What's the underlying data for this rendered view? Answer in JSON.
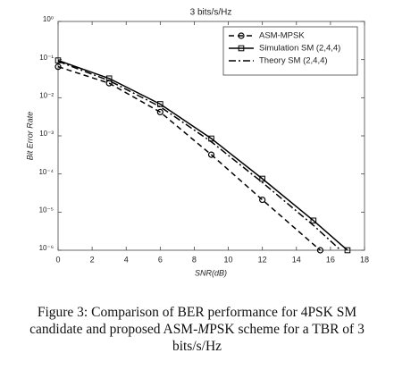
{
  "chart_data": {
    "type": "line",
    "title": "3 bits/s/Hz",
    "xlabel": "SNR(dB)",
    "ylabel": "Bit Error Rate",
    "xlim": [
      0,
      18
    ],
    "xticks": [
      0,
      2,
      4,
      6,
      8,
      10,
      12,
      14,
      16,
      18
    ],
    "ylim": [
      1e-06,
      1
    ],
    "yscale": "log",
    "yticks": [
      {
        "value": 1e-06,
        "label": "10⁻⁶"
      },
      {
        "value": 1e-05,
        "label": "10⁻⁵"
      },
      {
        "value": 0.0001,
        "label": "10⁻⁴"
      },
      {
        "value": 0.001,
        "label": "10⁻³"
      },
      {
        "value": 0.01,
        "label": "10⁻²"
      },
      {
        "value": 0.1,
        "label": "10⁻¹"
      },
      {
        "value": 1,
        "label": "10⁰"
      }
    ],
    "grid": false,
    "legend": "upper right",
    "series": [
      {
        "name": "ASM-MPSK",
        "color": "#000000",
        "linestyle": "dashed",
        "marker": "circle",
        "x": [
          0,
          3,
          6,
          9,
          12,
          15.4
        ],
        "values": [
          0.065,
          0.024,
          0.0042,
          0.00032,
          2.1e-05,
          1e-06
        ]
      },
      {
        "name": "Simulation SM (2,4,4)",
        "color": "#000000",
        "linestyle": "solid",
        "marker": "square",
        "x": [
          0,
          3,
          6,
          9,
          12,
          15,
          17
        ],
        "values": [
          0.095,
          0.032,
          0.0068,
          0.00085,
          7.5e-05,
          6e-06,
          1e-06
        ]
      },
      {
        "name": "Theory SM (2,4,4)",
        "color": "#000000",
        "linestyle": "dashdot",
        "marker": "none",
        "x": [
          0,
          3,
          6,
          9,
          12,
          15,
          16.6
        ],
        "values": [
          0.09,
          0.028,
          0.0058,
          0.0007,
          6e-05,
          4.5e-06,
          1e-06
        ]
      }
    ],
    "caption": [
      "Figure 3: Comparison of BER performance for 4PSK SM candidate and proposed ASM-",
      "M",
      "PSK scheme for a TBR of 3 bits/s/Hz"
    ]
  }
}
